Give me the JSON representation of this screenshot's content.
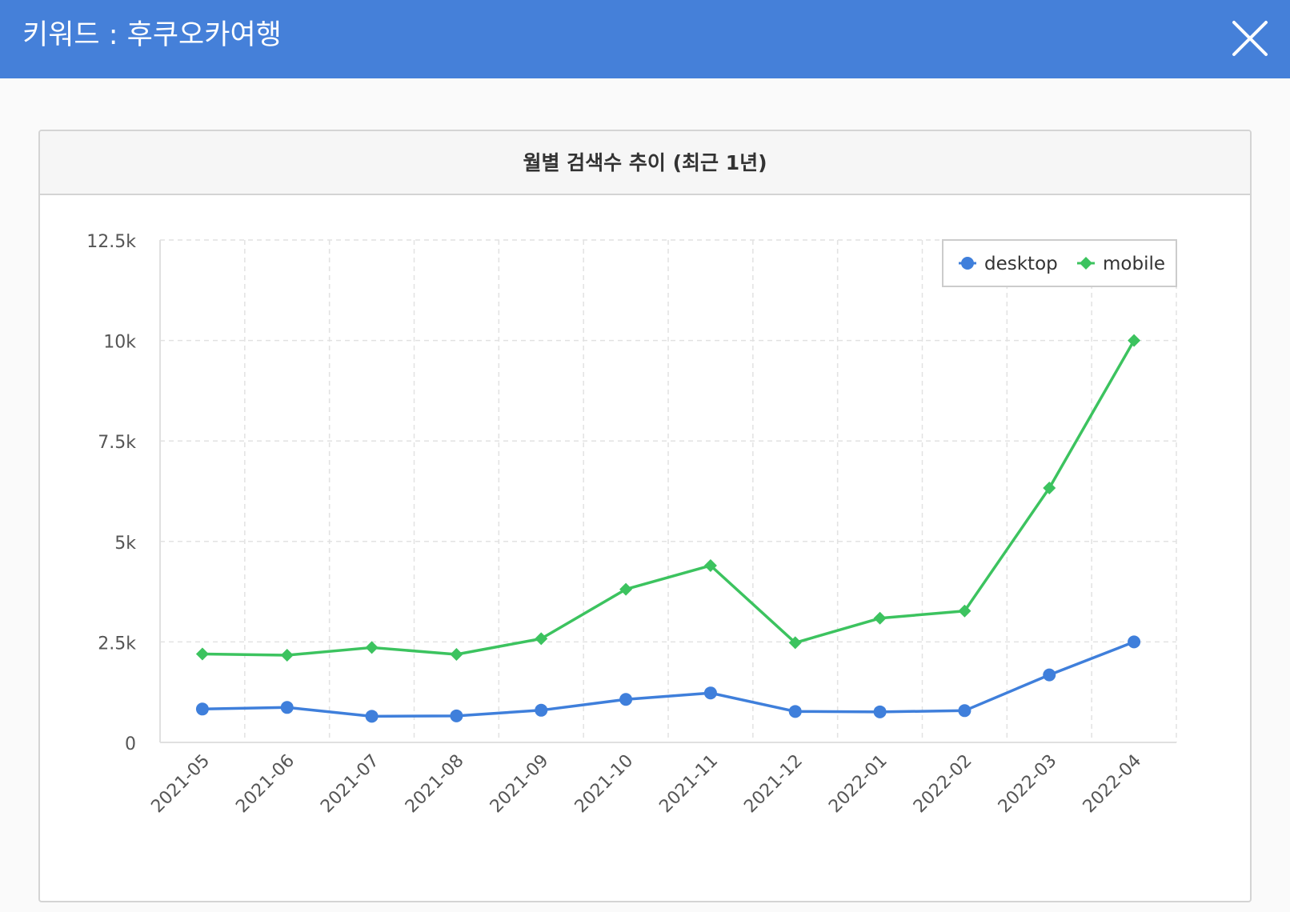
{
  "header": {
    "title": "키워드 : 후쿠오카여행"
  },
  "card": {
    "title": "월별 검색수 추이 (최근 1년)"
  },
  "colors": {
    "header_bg": "#4580d9",
    "desktop": "#3f7fdb",
    "mobile": "#3cc35f"
  },
  "icons": {
    "close": "close-icon"
  },
  "chart_data": {
    "type": "line",
    "title": "월별 검색수 추이 (최근 1년)",
    "xlabel": "",
    "ylabel": "",
    "categories": [
      "2021-05",
      "2021-06",
      "2021-07",
      "2021-08",
      "2021-09",
      "2021-10",
      "2021-11",
      "2021-12",
      "2022-01",
      "2022-02",
      "2022-03",
      "2022-04"
    ],
    "ylim": [
      0,
      12500
    ],
    "yticks": [
      0,
      2500,
      5000,
      7500,
      10000,
      12500
    ],
    "ytick_labels": [
      "0",
      "2.5k",
      "5k",
      "7.5k",
      "10k",
      "12.5k"
    ],
    "grid": true,
    "legend_position": "top-right",
    "series": [
      {
        "name": "desktop",
        "marker": "circle",
        "color": "#3f7fdb",
        "values": [
          830,
          870,
          650,
          660,
          800,
          1070,
          1230,
          770,
          760,
          790,
          1680,
          2500
        ]
      },
      {
        "name": "mobile",
        "marker": "diamond",
        "color": "#3cc35f",
        "values": [
          2200,
          2170,
          2360,
          2190,
          2580,
          3810,
          4400,
          2480,
          3090,
          3270,
          6330,
          10000
        ]
      }
    ]
  }
}
